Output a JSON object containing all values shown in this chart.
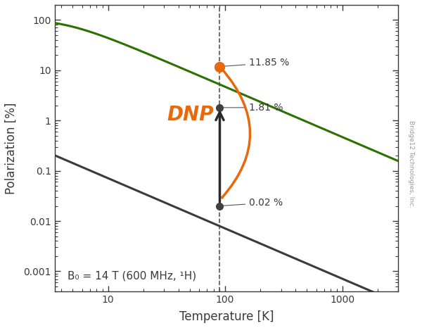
{
  "xlabel": "Temperature [K]",
  "ylabel": "Polarization [%]",
  "xlim": [
    3.5,
    3000
  ],
  "ylim": [
    0.0004,
    200
  ],
  "dashed_x": 90,
  "electron_curve_color": "#2d7000",
  "proton_curve_color": "#3a3a3a",
  "annotation_color": "#3a3a3a",
  "orange_color": "#E8690B",
  "dnp_label": "DNP",
  "dnp_label_color": "#E8690B",
  "dnp_label_fontsize": 20,
  "b0_label": "B₀ = 14 T (600 MHz, ¹H)",
  "b0_fontsize": 11,
  "watermark": "Bridge12 Technologies, Inc.",
  "point_dnp_x": 90,
  "point_dnp_y": 11.85,
  "point_proton_x": 90,
  "point_proton_y": 1.81,
  "point_thermal_x": 90,
  "point_thermal_y": 0.02,
  "label_11": "11.85 %",
  "label_181": "1.81 %",
  "label_002": "0.02 %",
  "T_electron_char": 9.4,
  "gamma_e_over_gamma_p": 660,
  "background_color": "#ffffff"
}
